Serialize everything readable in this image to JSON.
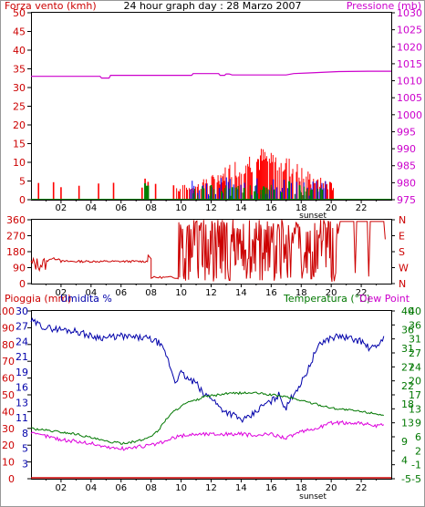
{
  "chart_data": [
    {
      "type": "bar",
      "title": "24 hour graph day : 28 Marzo 2007",
      "ylabel": "Forza vento (kmh)",
      "y2label": "Pressione (mb)",
      "ylim": [
        0,
        50
      ],
      "yticks": [
        0,
        5,
        10,
        15,
        20,
        25,
        30,
        35,
        40,
        45,
        50
      ],
      "y2lim": [
        975,
        1030
      ],
      "y2ticks": [
        975,
        980,
        985,
        990,
        995,
        1000,
        1005,
        1010,
        1015,
        1020,
        1025,
        1030
      ],
      "xlim": [
        0,
        24
      ],
      "xticks": [
        "02",
        "04",
        "06",
        "08",
        "10",
        "12",
        "14",
        "16",
        "18",
        "20",
        "22"
      ],
      "xtick_hours": [
        2,
        4,
        6,
        8,
        10,
        12,
        14,
        16,
        18,
        20,
        22
      ],
      "marker_label": "sunset",
      "marker_hour": 18.9,
      "colors": {
        "wind_gust": "#ff0000",
        "wind_avg": "#0000ff",
        "wind_low": "#008000",
        "pressure": "#cc00cc",
        "left_axis": "#cc0000",
        "right_axis": "#cc00cc"
      },
      "series": [
        {
          "name": "pressure",
          "x": [
            0,
            4.6,
            4.7,
            5.2,
            5.3,
            10.7,
            10.8,
            12.5,
            12.6,
            12.9,
            13,
            13.2,
            13.4,
            17,
            17.5,
            18.5,
            20.5,
            22.5,
            24
          ],
          "values": [
            1011.3,
            1011.3,
            1010.8,
            1010.8,
            1011.6,
            1011.6,
            1012.1,
            1012.1,
            1011.6,
            1011.6,
            1012,
            1012,
            1011.7,
            1011.7,
            1012.1,
            1012.3,
            1012.7,
            1012.8,
            1012.8
          ]
        }
      ]
    },
    {
      "type": "line",
      "ylim": [
        0,
        360
      ],
      "yticks": [
        0,
        90,
        180,
        270,
        360
      ],
      "y2ticks_labels": [
        "N",
        "W",
        "S",
        "E",
        "N"
      ],
      "xlim": [
        0,
        24
      ],
      "xticks": [
        "02",
        "04",
        "06",
        "08",
        "10",
        "12",
        "14",
        "16",
        "18",
        "20",
        "22"
      ],
      "marker_label": "sunset",
      "colors": {
        "direction": "#cc0000",
        "left_axis": "#cc0000"
      }
    },
    {
      "type": "line",
      "left_labels": [
        "Pioggia (mm)",
        "Umidita %"
      ],
      "right_labels": [
        "Temperatura (°C)",
        "Dew Point"
      ],
      "humidity_ticks": [
        0,
        10,
        20,
        30,
        40,
        50,
        60,
        70,
        80,
        90,
        100
      ],
      "rain_ticks": [
        0,
        3,
        5,
        8,
        11,
        13,
        16,
        19,
        21,
        24,
        27,
        30
      ],
      "temp_ticks": [
        -5,
        -1,
        2,
        6,
        9,
        13,
        17,
        20,
        24,
        27,
        31,
        36,
        40
      ],
      "temp_left_ticks": [
        -5,
        4,
        9,
        13,
        18,
        22,
        27,
        31,
        36,
        40
      ],
      "xlim": [
        0,
        24
      ],
      "xticks": [
        "02",
        "04",
        "06",
        "08",
        "10",
        "12",
        "14",
        "16",
        "18",
        "20",
        "22"
      ],
      "marker_label": "sunset",
      "colors": {
        "humidity": "#0000aa",
        "temperature": "#007700",
        "dewpoint": "#dd00dd",
        "rain": "#cc0000",
        "left_axis": "#cc0000",
        "humidity_axis": "#0000aa",
        "right_axis": "#007700"
      },
      "series": [
        {
          "name": "humidity",
          "x": [
            0,
            1,
            2,
            3,
            4,
            5,
            6,
            7,
            7.5,
            8,
            8.5,
            9,
            9.3,
            9.6,
            10,
            10.5,
            11,
            11.5,
            12,
            12.5,
            13,
            13.5,
            14,
            14.5,
            15,
            15.5,
            16,
            16.5,
            17,
            17.5,
            18,
            18.5,
            19,
            19.5,
            20,
            20.5,
            21,
            22,
            22.5,
            23,
            23.5
          ],
          "values": [
            94,
            90,
            89,
            88,
            85,
            84,
            85,
            84,
            84,
            83,
            81,
            74,
            66,
            58,
            63,
            59,
            57,
            50,
            49,
            43,
            40,
            38,
            35,
            36,
            40,
            44,
            46,
            50,
            42,
            51,
            57,
            66,
            77,
            82,
            84,
            85,
            84,
            82,
            78,
            78,
            85
          ]
        },
        {
          "name": "temperature",
          "x": [
            0,
            1,
            2,
            3,
            4,
            5,
            6,
            7,
            7.5,
            8,
            8.5,
            9,
            9.5,
            10,
            10.5,
            11,
            11.5,
            12,
            12.5,
            13,
            14,
            15,
            16,
            17,
            18,
            19,
            20,
            21,
            22,
            23,
            23.5
          ],
          "values": [
            8.5,
            8,
            7.5,
            7,
            6,
            5,
            4.5,
            5,
            5.5,
            6.5,
            8,
            11,
            13,
            14.5,
            15.5,
            16,
            17,
            17.2,
            17.5,
            17.8,
            18,
            18,
            17.5,
            17,
            16,
            15,
            14,
            13.5,
            13,
            12.5,
            12
          ]
        },
        {
          "name": "dewpoint",
          "x": [
            0,
            1,
            2,
            3,
            4,
            5,
            6,
            7,
            8,
            8.5,
            9,
            9.5,
            10,
            11,
            12,
            13,
            14,
            15,
            16,
            17,
            18,
            19,
            20,
            21,
            22,
            23,
            23.5
          ],
          "values": [
            7,
            6.5,
            5.5,
            5,
            4.5,
            3.5,
            3,
            3.5,
            4,
            4.5,
            5,
            6,
            6.5,
            7,
            7,
            7,
            7,
            6.5,
            7,
            6,
            7.5,
            8.5,
            10,
            10,
            10,
            9,
            9.5
          ]
        },
        {
          "name": "rain",
          "x": [
            0,
            24
          ],
          "values": [
            0,
            0
          ]
        }
      ]
    }
  ]
}
